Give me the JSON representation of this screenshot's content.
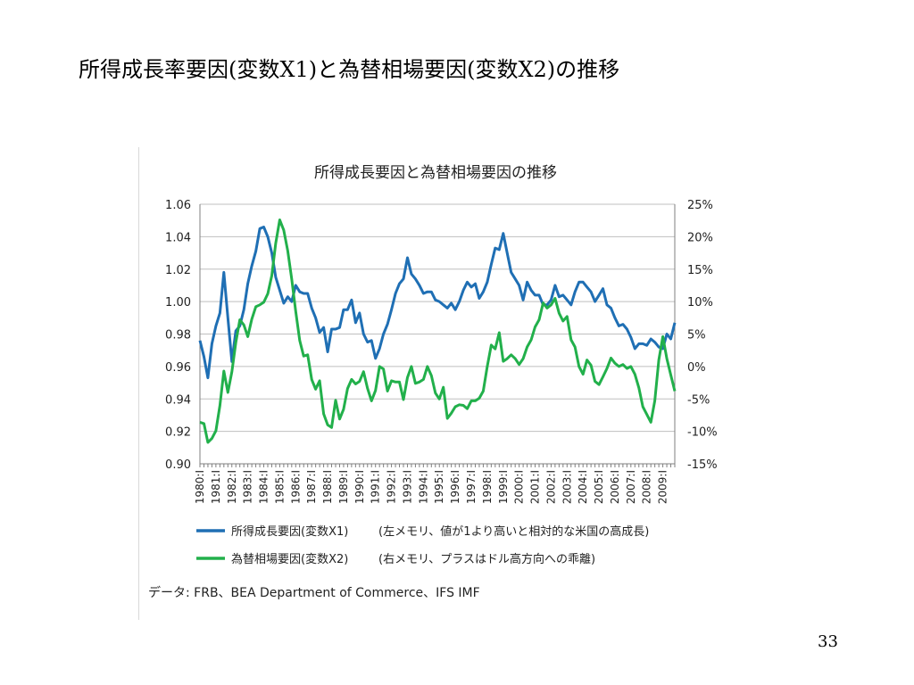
{
  "slide": {
    "title": "所得成長率要因(変数X1)と為替相場要因(変数X2)の推移",
    "page_number": "33",
    "source_note": "データ: FRB、BEA Department of Commerce、IFS IMF"
  },
  "chart_data": {
    "type": "line",
    "title": "所得成長要因と為替相場要因の推移",
    "xlabel": "",
    "ylabel": "",
    "x_tick_labels": [
      "1980:I",
      "1981:I",
      "1982:I",
      "1983:I",
      "1984:I",
      "1985:I",
      "1986:I",
      "1987:I",
      "1988:I",
      "1989:I",
      "1990:I",
      "1991:I",
      "1992:I",
      "1993:I",
      "1994:I",
      "1995:I",
      "1996:I",
      "1997:I",
      "1998:I",
      "1999:I",
      "2000:I",
      "2001:I",
      "2002:I",
      "2003:I",
      "2004:I",
      "2005:I",
      "2006:I",
      "2007:I",
      "2008:I",
      "2009:I"
    ],
    "x_range": [
      1980.0,
      2009.75
    ],
    "y_left": {
      "range": [
        0.9,
        1.06
      ],
      "tick_labels": [
        "1.06",
        "1.04",
        "1.02",
        "1.00",
        "0.98",
        "0.96",
        "0.94",
        "0.92",
        "0.90"
      ],
      "tick_values": [
        1.06,
        1.04,
        1.02,
        1.0,
        0.98,
        0.96,
        0.94,
        0.92,
        0.9
      ]
    },
    "y_right": {
      "range": [
        -15,
        25
      ],
      "unit": "%",
      "tick_labels": [
        "25%",
        "20%",
        "15%",
        "10%",
        "5%",
        "0%",
        "-5%",
        "-10%",
        "-15%"
      ],
      "tick_values": [
        25,
        20,
        15,
        10,
        5,
        0,
        -5,
        -10,
        -15
      ]
    },
    "grid": true,
    "legend_position": "bottom",
    "series": [
      {
        "name": "所得成長要因(変数X1)",
        "note": "(左メモリ、値が1より高いと相対的な米国の高成長)",
        "color": "#1f6fb4",
        "axis": "left",
        "points": [
          [
            1980.0,
            0.976
          ],
          [
            1980.25,
            0.966
          ],
          [
            1980.5,
            0.953
          ],
          [
            1980.75,
            0.974
          ],
          [
            1981.0,
            0.985
          ],
          [
            1981.25,
            0.993
          ],
          [
            1981.5,
            1.018
          ],
          [
            1981.75,
            0.99
          ],
          [
            1982.0,
            0.963
          ],
          [
            1982.25,
            0.982
          ],
          [
            1982.5,
            0.985
          ],
          [
            1982.75,
            0.995
          ],
          [
            1983.0,
            1.011
          ],
          [
            1983.25,
            1.022
          ],
          [
            1983.5,
            1.031
          ],
          [
            1983.75,
            1.045
          ],
          [
            1984.0,
            1.046
          ],
          [
            1984.25,
            1.04
          ],
          [
            1984.5,
            1.03
          ],
          [
            1984.75,
            1.015
          ],
          [
            1985.0,
            1.007
          ],
          [
            1985.25,
            0.999
          ],
          [
            1985.5,
            1.003
          ],
          [
            1985.75,
            1.0
          ],
          [
            1986.0,
            1.01
          ],
          [
            1986.25,
            1.006
          ],
          [
            1986.5,
            1.005
          ],
          [
            1986.75,
            1.005
          ],
          [
            1987.0,
            0.996
          ],
          [
            1987.25,
            0.99
          ],
          [
            1987.5,
            0.981
          ],
          [
            1987.75,
            0.984
          ],
          [
            1988.0,
            0.969
          ],
          [
            1988.25,
            0.983
          ],
          [
            1988.5,
            0.983
          ],
          [
            1988.75,
            0.984
          ],
          [
            1989.0,
            0.995
          ],
          [
            1989.25,
            0.995
          ],
          [
            1989.5,
            1.001
          ],
          [
            1989.75,
            0.987
          ],
          [
            1990.0,
            0.993
          ],
          [
            1990.25,
            0.98
          ],
          [
            1990.5,
            0.975
          ],
          [
            1990.75,
            0.976
          ],
          [
            1991.0,
            0.965
          ],
          [
            1991.25,
            0.971
          ],
          [
            1991.5,
            0.98
          ],
          [
            1991.75,
            0.986
          ],
          [
            1992.0,
            0.995
          ],
          [
            1992.25,
            1.005
          ],
          [
            1992.5,
            1.011
          ],
          [
            1992.75,
            1.014
          ],
          [
            1993.0,
            1.027
          ],
          [
            1993.25,
            1.017
          ],
          [
            1993.5,
            1.014
          ],
          [
            1993.75,
            1.01
          ],
          [
            1994.0,
            1.005
          ],
          [
            1994.25,
            1.006
          ],
          [
            1994.5,
            1.006
          ],
          [
            1994.75,
            1.001
          ],
          [
            1995.0,
            1.0
          ],
          [
            1995.25,
            0.998
          ],
          [
            1995.5,
            0.996
          ],
          [
            1995.75,
            0.999
          ],
          [
            1996.0,
            0.995
          ],
          [
            1996.25,
            1.0
          ],
          [
            1996.5,
            1.007
          ],
          [
            1996.75,
            1.012
          ],
          [
            1997.0,
            1.009
          ],
          [
            1997.25,
            1.011
          ],
          [
            1997.5,
            1.002
          ],
          [
            1997.75,
            1.006
          ],
          [
            1998.0,
            1.012
          ],
          [
            1998.25,
            1.023
          ],
          [
            1998.5,
            1.033
          ],
          [
            1998.75,
            1.032
          ],
          [
            1999.0,
            1.042
          ],
          [
            1999.25,
            1.03
          ],
          [
            1999.5,
            1.018
          ],
          [
            1999.75,
            1.014
          ],
          [
            2000.0,
            1.01
          ],
          [
            2000.25,
            1.001
          ],
          [
            2000.5,
            1.012
          ],
          [
            2000.75,
            1.007
          ],
          [
            2001.0,
            1.004
          ],
          [
            2001.25,
            1.004
          ],
          [
            2001.5,
            0.998
          ],
          [
            2001.75,
            0.998
          ],
          [
            2002.0,
            1.001
          ],
          [
            2002.25,
            1.01
          ],
          [
            2002.5,
            1.003
          ],
          [
            2002.75,
            1.004
          ],
          [
            2003.0,
            1.001
          ],
          [
            2003.25,
            0.998
          ],
          [
            2003.5,
            1.006
          ],
          [
            2003.75,
            1.012
          ],
          [
            2004.0,
            1.012
          ],
          [
            2004.25,
            1.009
          ],
          [
            2004.5,
            1.006
          ],
          [
            2004.75,
            1.0
          ],
          [
            2005.0,
            1.004
          ],
          [
            2005.25,
            1.008
          ],
          [
            2005.5,
            0.998
          ],
          [
            2005.75,
            0.996
          ],
          [
            2006.0,
            0.99
          ],
          [
            2006.25,
            0.985
          ],
          [
            2006.5,
            0.986
          ],
          [
            2006.75,
            0.983
          ],
          [
            2007.0,
            0.978
          ],
          [
            2007.25,
            0.971
          ],
          [
            2007.5,
            0.974
          ],
          [
            2007.75,
            0.974
          ],
          [
            2008.0,
            0.973
          ],
          [
            2008.25,
            0.977
          ],
          [
            2008.5,
            0.975
          ],
          [
            2008.75,
            0.972
          ],
          [
            2009.0,
            0.971
          ],
          [
            2009.25,
            0.98
          ],
          [
            2009.5,
            0.977
          ],
          [
            2009.75,
            0.987
          ]
        ]
      },
      {
        "name": "為替相場要因(変数X2)",
        "note": "(右メモリ、プラスはドル高方向への乖離)",
        "color": "#22b04b",
        "axis": "right",
        "points": [
          [
            1980.0,
            -8.6
          ],
          [
            1980.25,
            -8.8
          ],
          [
            1980.5,
            -11.7
          ],
          [
            1980.75,
            -11.1
          ],
          [
            1981.0,
            -9.9
          ],
          [
            1981.25,
            -6.0
          ],
          [
            1981.5,
            -0.7
          ],
          [
            1981.75,
            -4.0
          ],
          [
            1982.0,
            -0.8
          ],
          [
            1982.25,
            3.7
          ],
          [
            1982.5,
            7.2
          ],
          [
            1982.75,
            6.4
          ],
          [
            1983.0,
            4.6
          ],
          [
            1983.25,
            7.3
          ],
          [
            1983.5,
            9.2
          ],
          [
            1983.75,
            9.5
          ],
          [
            1984.0,
            9.9
          ],
          [
            1984.25,
            11.2
          ],
          [
            1984.5,
            14.0
          ],
          [
            1984.75,
            19.0
          ],
          [
            1985.0,
            22.6
          ],
          [
            1985.25,
            21.0
          ],
          [
            1985.5,
            17.8
          ],
          [
            1985.75,
            13.5
          ],
          [
            1986.0,
            8.5
          ],
          [
            1986.25,
            4.0
          ],
          [
            1986.5,
            1.6
          ],
          [
            1986.75,
            1.8
          ],
          [
            1987.0,
            -2.0
          ],
          [
            1987.25,
            -3.5
          ],
          [
            1987.5,
            -2.2
          ],
          [
            1987.75,
            -7.3
          ],
          [
            1988.0,
            -9.0
          ],
          [
            1988.25,
            -9.4
          ],
          [
            1988.5,
            -5.2
          ],
          [
            1988.75,
            -8.1
          ],
          [
            1989.0,
            -6.6
          ],
          [
            1989.25,
            -3.4
          ],
          [
            1989.5,
            -2.0
          ],
          [
            1989.75,
            -2.7
          ],
          [
            1990.0,
            -2.3
          ],
          [
            1990.25,
            -0.8
          ],
          [
            1990.5,
            -3.4
          ],
          [
            1990.75,
            -5.3
          ],
          [
            1991.0,
            -3.7
          ],
          [
            1991.25,
            0.0
          ],
          [
            1991.5,
            -0.4
          ],
          [
            1991.75,
            -3.8
          ],
          [
            1992.0,
            -2.2
          ],
          [
            1992.25,
            -2.4
          ],
          [
            1992.5,
            -2.4
          ],
          [
            1992.75,
            -5.1
          ],
          [
            1993.0,
            -1.7
          ],
          [
            1993.25,
            0.0
          ],
          [
            1993.5,
            -2.6
          ],
          [
            1993.75,
            -2.4
          ],
          [
            1994.0,
            -2.0
          ],
          [
            1994.25,
            0.0
          ],
          [
            1994.5,
            -1.4
          ],
          [
            1994.75,
            -4.1
          ],
          [
            1995.0,
            -5.0
          ],
          [
            1995.25,
            -3.2
          ],
          [
            1995.5,
            -8.0
          ],
          [
            1995.75,
            -7.2
          ],
          [
            1996.0,
            -6.2
          ],
          [
            1996.25,
            -5.9
          ],
          [
            1996.5,
            -6.0
          ],
          [
            1996.75,
            -6.5
          ],
          [
            1997.0,
            -5.3
          ],
          [
            1997.25,
            -5.3
          ],
          [
            1997.5,
            -4.9
          ],
          [
            1997.75,
            -3.8
          ],
          [
            1998.0,
            0.0
          ],
          [
            1998.25,
            3.3
          ],
          [
            1998.5,
            2.7
          ],
          [
            1998.75,
            5.2
          ],
          [
            1999.0,
            0.8
          ],
          [
            1999.25,
            1.2
          ],
          [
            1999.5,
            1.8
          ],
          [
            1999.75,
            1.2
          ],
          [
            2000.0,
            0.3
          ],
          [
            2000.25,
            1.2
          ],
          [
            2000.5,
            3.0
          ],
          [
            2000.75,
            4.1
          ],
          [
            2001.0,
            6.1
          ],
          [
            2001.25,
            7.2
          ],
          [
            2001.5,
            9.8
          ],
          [
            2001.75,
            9.0
          ],
          [
            2002.0,
            9.5
          ],
          [
            2002.25,
            10.5
          ],
          [
            2002.5,
            8.2
          ],
          [
            2002.75,
            7.0
          ],
          [
            2003.0,
            7.7
          ],
          [
            2003.25,
            4.1
          ],
          [
            2003.5,
            3.0
          ],
          [
            2003.75,
            0.0
          ],
          [
            2004.0,
            -1.2
          ],
          [
            2004.25,
            1.0
          ],
          [
            2004.5,
            0.2
          ],
          [
            2004.75,
            -2.3
          ],
          [
            2005.0,
            -2.8
          ],
          [
            2005.25,
            -1.6
          ],
          [
            2005.5,
            -0.3
          ],
          [
            2005.75,
            1.3
          ],
          [
            2006.0,
            0.5
          ],
          [
            2006.25,
            0.0
          ],
          [
            2006.5,
            0.3
          ],
          [
            2006.75,
            -0.3
          ],
          [
            2007.0,
            0.0
          ],
          [
            2007.25,
            -1.2
          ],
          [
            2007.5,
            -3.3
          ],
          [
            2007.75,
            -6.2
          ],
          [
            2008.0,
            -7.4
          ],
          [
            2008.25,
            -8.6
          ],
          [
            2008.5,
            -5.3
          ],
          [
            2008.75,
            1.0
          ],
          [
            2009.0,
            4.6
          ],
          [
            2009.25,
            1.2
          ],
          [
            2009.5,
            -1.3
          ],
          [
            2009.75,
            -3.8
          ]
        ]
      }
    ]
  }
}
